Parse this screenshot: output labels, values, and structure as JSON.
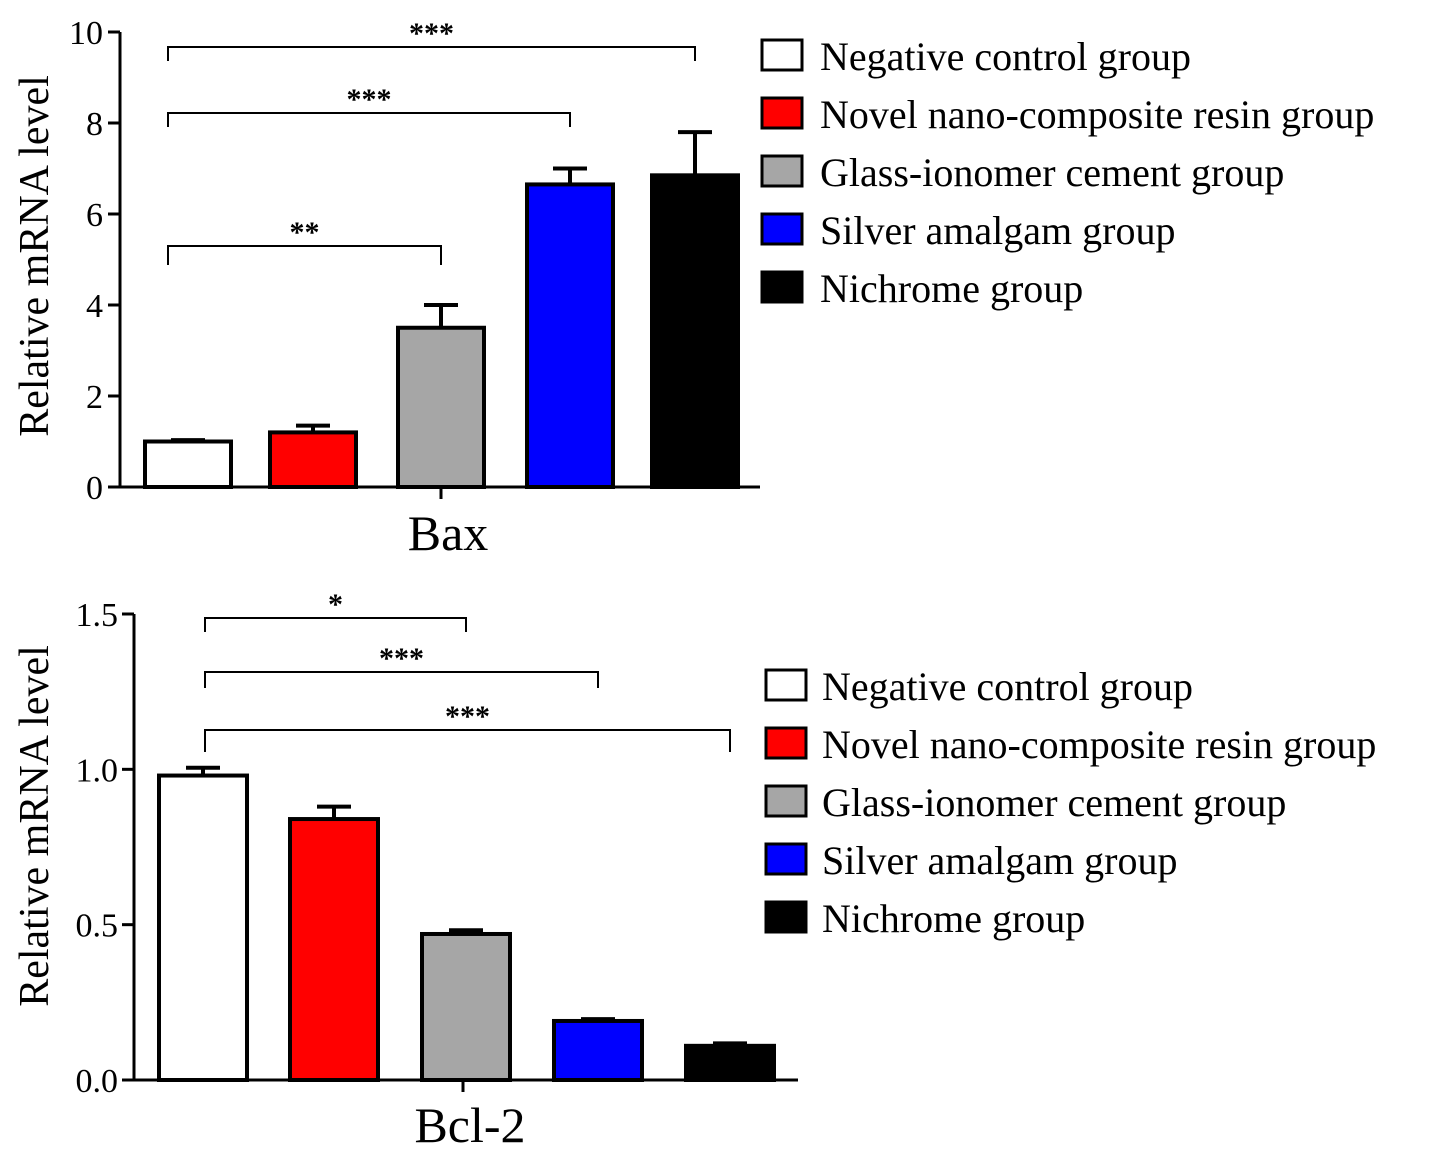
{
  "series_legend": [
    {
      "name": "Negative control group",
      "color": "#ffffff"
    },
    {
      "name": "Novel nano-composite resin group",
      "color": "#ff0000"
    },
    {
      "name": "Glass-ionomer cement group",
      "color": "#a6a6a6"
    },
    {
      "name": "Silver amalgam group",
      "color": "#0000ff"
    },
    {
      "name": "Nichrome group",
      "color": "#000000"
    }
  ],
  "chart_data": [
    {
      "type": "bar",
      "xlabel": "Bax",
      "ylabel": "Relative mRNA level",
      "ylim": [
        0,
        10
      ],
      "yticks": [
        "0",
        "2",
        "4",
        "6",
        "8",
        "10"
      ],
      "legend_position": "top-right",
      "grid": false,
      "categories": [
        "Negative control group",
        "Novel nano-composite resin group",
        "Glass-ionomer cement group",
        "Silver amalgam group",
        "Nichrome group"
      ],
      "values": [
        1.0,
        1.2,
        3.5,
        6.65,
        6.85
      ],
      "errors": [
        0.03,
        0.15,
        0.5,
        0.35,
        0.95
      ],
      "significance": [
        {
          "from": 0,
          "to": 2,
          "label": "**"
        },
        {
          "from": 0,
          "to": 3,
          "label": "***"
        },
        {
          "from": 0,
          "to": 4,
          "label": "***"
        }
      ]
    },
    {
      "type": "bar",
      "xlabel": "Bcl-2",
      "ylabel": "Relative mRNA level",
      "ylim": [
        0,
        1.5
      ],
      "yticks": [
        "0.0",
        "0.5",
        "1.0",
        "1.5"
      ],
      "legend_position": "right",
      "grid": false,
      "categories": [
        "Negative control group",
        "Novel nano-composite resin group",
        "Glass-ionomer cement group",
        "Silver amalgam group",
        "Nichrome group"
      ],
      "values": [
        0.98,
        0.84,
        0.47,
        0.19,
        0.11
      ],
      "errors": [
        0.025,
        0.04,
        0.012,
        0.006,
        0.008
      ],
      "significance": [
        {
          "from": 0,
          "to": 2,
          "label": "*"
        },
        {
          "from": 0,
          "to": 3,
          "label": "***"
        },
        {
          "from": 0,
          "to": 4,
          "label": "***"
        }
      ]
    }
  ]
}
